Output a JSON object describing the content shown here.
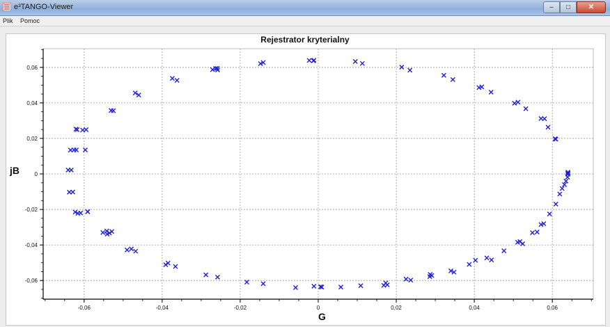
{
  "window": {
    "title": "e³TANGO-Viewer",
    "minimize_glyph": "–",
    "maximize_glyph": "□",
    "close_glyph": "✕"
  },
  "menu": {
    "items": [
      "Plik",
      "Pomoc"
    ]
  },
  "icons": {
    "app": "app-icon",
    "minimize": "minimize-icon",
    "maximize": "maximize-icon",
    "close": "close-icon"
  },
  "colors": {
    "series": "#1f1fd6",
    "grid": "#9a9a9a",
    "axis": "#000000",
    "titlebar": "#9fbadd"
  },
  "chart_data": {
    "type": "scatter",
    "title": "Rejestrator kryterialny",
    "xlabel": "G",
    "ylabel": "jB",
    "xlim": [
      -0.0705,
      0.0705
    ],
    "ylim": [
      -0.0705,
      0.0705
    ],
    "xticks": [
      -0.06,
      -0.04,
      -0.02,
      0,
      0.02,
      0.04,
      0.06
    ],
    "yticks": [
      -0.06,
      -0.04,
      -0.02,
      0,
      0.02,
      0.04,
      0.06
    ],
    "xtick_labels": [
      "-0,06",
      "-0,04",
      "-0,02",
      "0",
      "0,02",
      "0,04",
      "0,06"
    ],
    "ytick_labels": [
      "-0,06",
      "-0,04",
      "-0,02",
      "0",
      "0,02",
      "0,04",
      "0,06"
    ],
    "grid": true,
    "marker": "x",
    "series": [
      {
        "x": [
          -0.0641,
          -0.0633,
          -0.0638,
          -0.0629,
          -0.0635,
          -0.0626,
          -0.0623,
          -0.0616,
          -0.062,
          -0.0609,
          -0.0604,
          -0.0595,
          -0.0591,
          -0.0552,
          -0.0542,
          -0.0541,
          -0.049,
          -0.0479,
          -0.0468,
          -0.0391,
          -0.0385,
          -0.0366,
          -0.0288,
          -0.0258,
          -0.0183,
          -0.0141,
          -0.0058,
          -0.0011,
          0.0058,
          0.0109,
          0.0173,
          0.0177,
          0.0237,
          0.0287,
          0.0291,
          0.034,
          0.0348,
          0.0387,
          0.0432,
          0.0444,
          0.0476,
          0.0511,
          0.0524,
          0.0549,
          0.0561,
          0.0578,
          0.0593,
          0.0609,
          0.0619,
          0.0625,
          0.0631,
          0.0635,
          0.0639,
          0.064,
          0.064,
          0.064,
          0.064,
          -0.0621,
          -0.0618,
          -0.0597,
          -0.0591,
          -0.0531,
          -0.0525,
          -0.0469,
          -0.046,
          -0.0374,
          -0.0362,
          -0.0263,
          -0.0258,
          -0.0148,
          -0.0141,
          -0.0023,
          -0.0012,
          0.0095,
          0.0113,
          0.0214,
          0.0235,
          0.0322,
          0.0345,
          0.0412,
          0.0419,
          0.0443,
          0.0503,
          0.0512,
          0.0532,
          0.0571,
          0.058,
          0.0589,
          0.0607,
          0.0609,
          -0.0535,
          -0.0529,
          -0.0271,
          -0.0259,
          -0.0011,
          0.0006,
          0.0009,
          0.0168,
          0.0225,
          0.0286,
          0.0403,
          0.0517,
          0.0571
        ],
        "y": [
          0.0022,
          0.0022,
          -0.0103,
          -0.0102,
          0.0134,
          0.0135,
          -0.0215,
          -0.0222,
          0.0135,
          -0.022,
          0.0247,
          0.0249,
          -0.0213,
          -0.033,
          -0.0321,
          -0.0339,
          -0.0428,
          -0.0422,
          -0.0435,
          -0.0511,
          -0.0502,
          -0.0521,
          -0.0568,
          -0.0581,
          -0.0609,
          -0.0618,
          -0.064,
          -0.0632,
          -0.0637,
          -0.0629,
          -0.0614,
          -0.0624,
          -0.0598,
          -0.0566,
          -0.0572,
          -0.0546,
          -0.0553,
          -0.0509,
          -0.0473,
          -0.0484,
          -0.0433,
          -0.0385,
          -0.0393,
          -0.0331,
          -0.0327,
          -0.028,
          -0.0225,
          -0.017,
          -0.0113,
          -0.0082,
          -0.006,
          -0.004,
          -0.0018,
          -0.0002,
          0.0005,
          0.001,
          0.0003,
          0.0252,
          0.0249,
          0.0135,
          -0.0212,
          0.0357,
          0.0356,
          0.0456,
          0.0444,
          0.0538,
          0.0527,
          0.0594,
          0.0585,
          0.0621,
          0.0627,
          0.0639,
          0.0637,
          0.0633,
          0.0622,
          0.0601,
          0.0584,
          0.0555,
          0.0531,
          0.0486,
          0.049,
          0.046,
          0.0398,
          0.0404,
          0.0367,
          0.0312,
          0.0311,
          0.0263,
          0.0198,
          0.0196,
          -0.0333,
          -0.0324,
          0.0587,
          0.0594,
          0.064,
          -0.0635,
          -0.0637,
          -0.0627,
          -0.0592,
          -0.0578,
          -0.0486,
          -0.0381,
          -0.0285
        ]
      }
    ]
  }
}
